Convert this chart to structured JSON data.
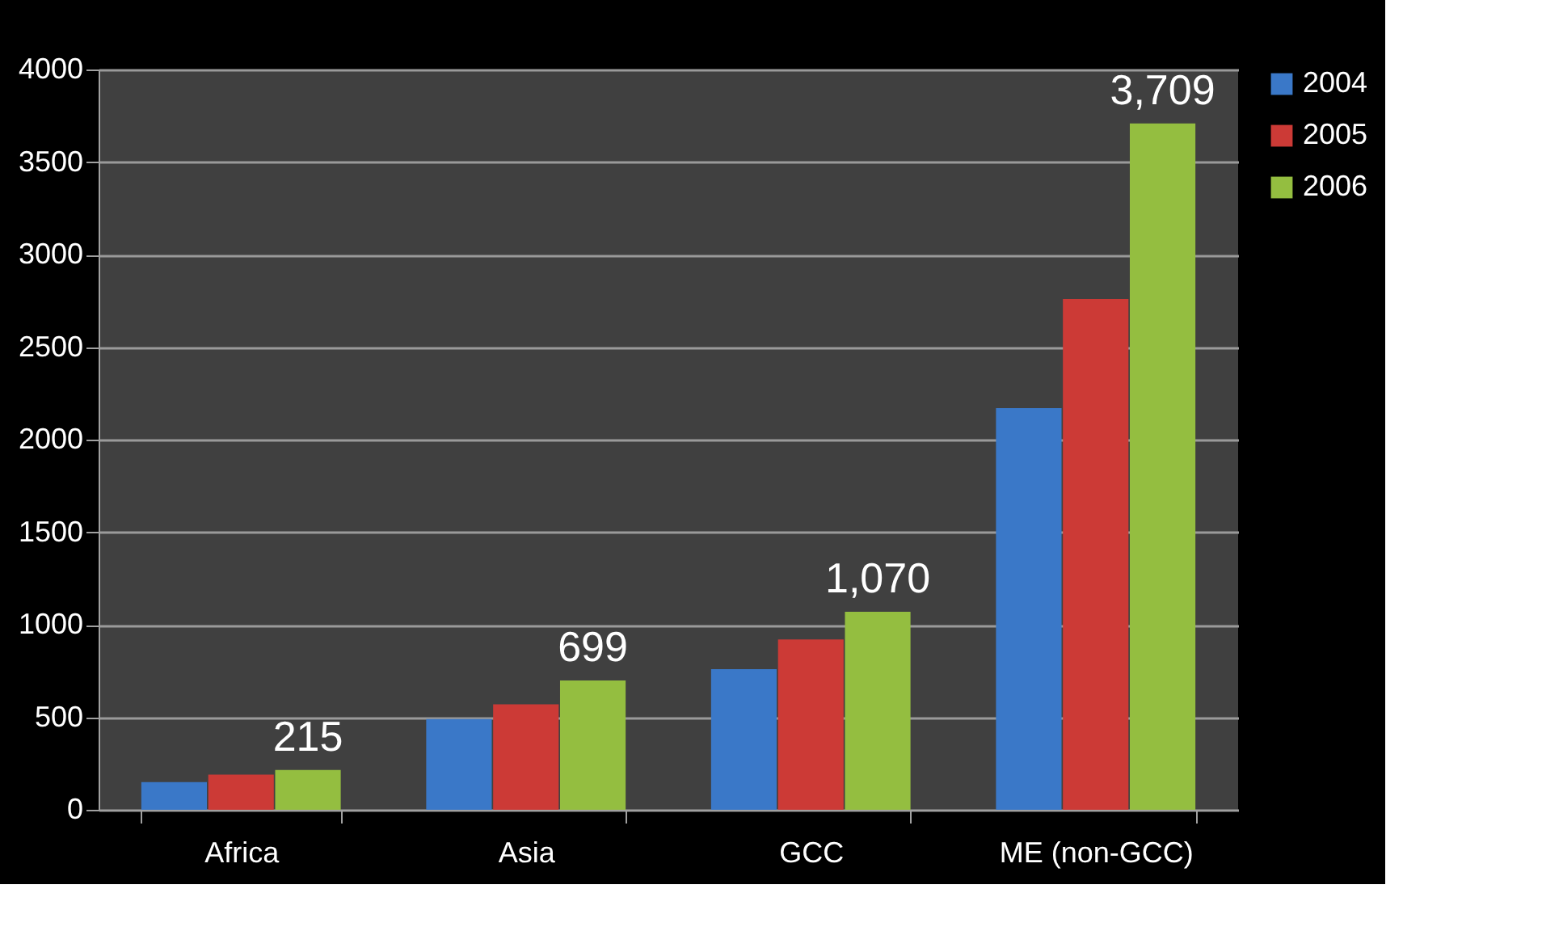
{
  "chart_data": {
    "type": "bar",
    "categories": [
      "Africa",
      "Asia",
      "GCC",
      "ME (non-GCC)"
    ],
    "series": [
      {
        "name": "2004",
        "color": "#3a78c8",
        "values": [
          150,
          490,
          760,
          2170
        ]
      },
      {
        "name": "2005",
        "color": "#cc3a36",
        "values": [
          190,
          570,
          920,
          2760
        ]
      },
      {
        "name": "2006",
        "color": "#94be40",
        "values": [
          215,
          699,
          1070,
          3709
        ],
        "value_labels": [
          "215",
          "699",
          "1,070",
          "3,709"
        ]
      }
    ],
    "ylim": [
      0,
      4000
    ],
    "yticks": [
      0,
      500,
      1000,
      1500,
      2000,
      2500,
      3000,
      3500,
      4000
    ],
    "grid": "y",
    "legend": "right"
  }
}
